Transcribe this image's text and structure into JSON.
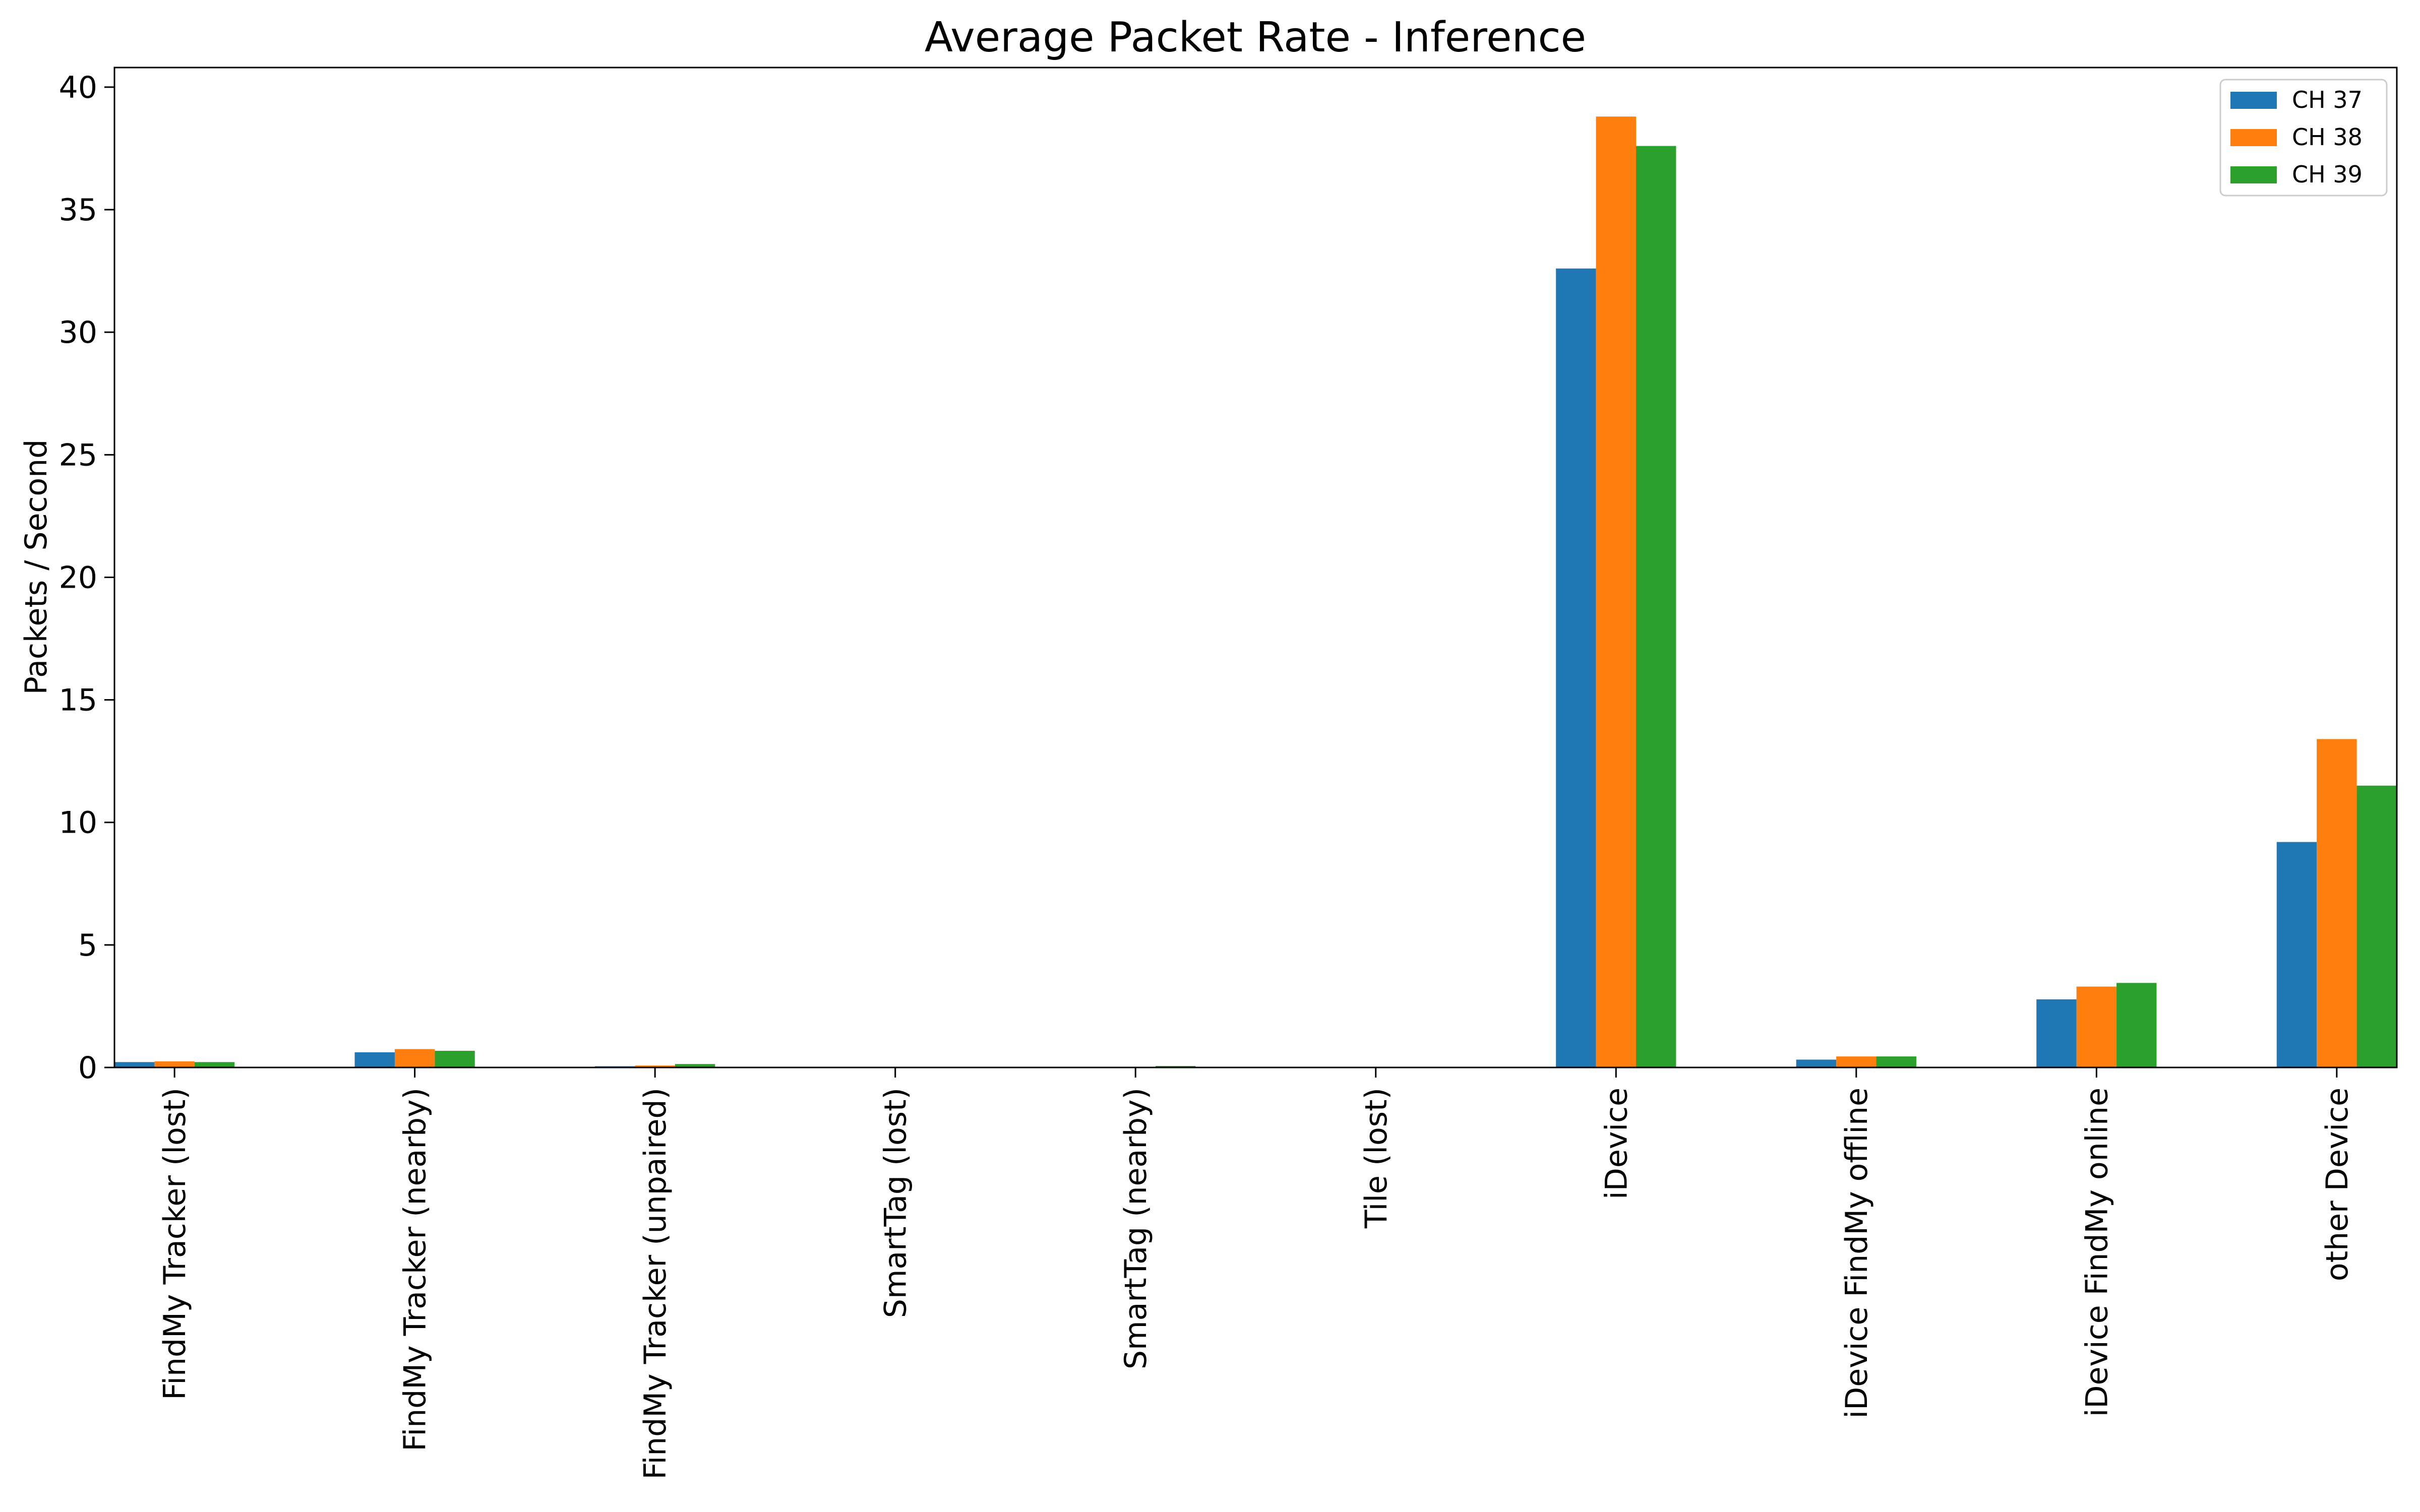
{
  "chart_data": {
    "type": "bar",
    "title": "Average Packet Rate - Inference",
    "xlabel": "",
    "ylabel": "Packets / Second",
    "ylim": [
      0,
      40.8
    ],
    "yticks": [
      0,
      5,
      10,
      15,
      20,
      25,
      30,
      35,
      40
    ],
    "grid": false,
    "legend_position": "top-right",
    "categories": [
      "FindMy Tracker (lost)",
      "FindMy Tracker (nearby)",
      "FindMy Tracker (unpaired)",
      "SmartTag (lost)",
      "SmartTag (nearby)",
      "Tile (lost)",
      "iDevice",
      "iDevice FindMy offline",
      "iDevice FindMy online",
      "other Device"
    ],
    "series": [
      {
        "name": "CH 37",
        "color": "#1f77b4",
        "values": [
          0.22,
          0.62,
          0.05,
          0.03,
          0.02,
          0.0,
          32.6,
          0.32,
          2.78,
          9.2
        ]
      },
      {
        "name": "CH 38",
        "color": "#ff7f0e",
        "values": [
          0.25,
          0.75,
          0.08,
          0.02,
          0.03,
          0.0,
          38.8,
          0.45,
          3.3,
          13.4
        ]
      },
      {
        "name": "CH 39",
        "color": "#2ca02c",
        "values": [
          0.22,
          0.68,
          0.14,
          0.02,
          0.06,
          0.0,
          37.6,
          0.45,
          3.45,
          11.5
        ]
      }
    ]
  }
}
